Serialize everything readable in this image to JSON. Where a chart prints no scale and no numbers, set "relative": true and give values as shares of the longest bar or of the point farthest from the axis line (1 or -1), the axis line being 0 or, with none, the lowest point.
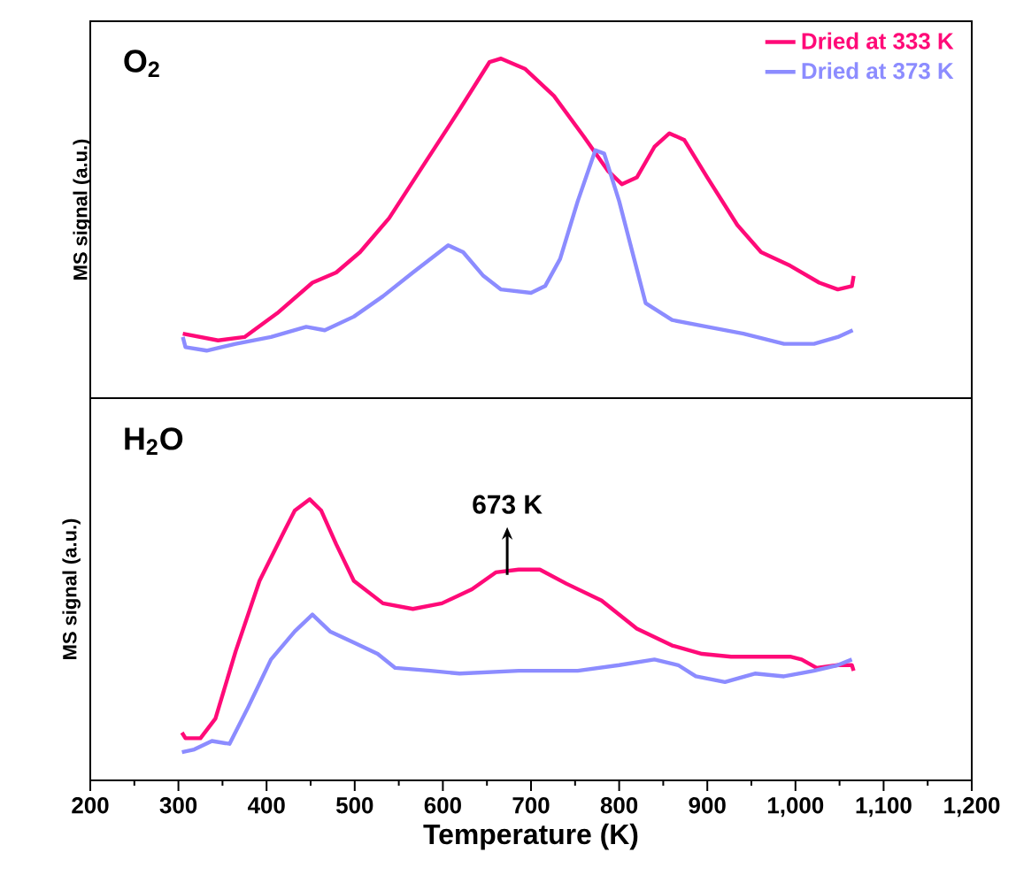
{
  "chart_data": [
    {
      "type": "line",
      "title": "O$_{2}$",
      "ylabel": "MS signal (a.u.)",
      "relative": true,
      "legend": "top right",
      "tick_labels": false,
      "xlim": [
        200,
        1200
      ],
      "series": [
        {
          "name": "Dried at 333 K",
          "color": "#ff0a78",
          "x": [
            305,
            345,
            375,
            412,
            452,
            479,
            506,
            539,
            579,
            619,
            653,
            666,
            693,
            726,
            760,
            787,
            803,
            820,
            840,
            857,
            874,
            900,
            934,
            961,
            994,
            1027,
            1048,
            1064,
            1066
          ],
          "values": [
            0.19,
            0.17,
            0.18,
            0.25,
            0.34,
            0.37,
            0.43,
            0.53,
            0.69,
            0.85,
            0.99,
            1.0,
            0.97,
            0.89,
            0.77,
            0.67,
            0.63,
            0.65,
            0.74,
            0.78,
            0.76,
            0.65,
            0.51,
            0.43,
            0.39,
            0.34,
            0.32,
            0.33,
            0.36
          ]
        },
        {
          "name": "Dried at 373 K",
          "color": "#8c8cff",
          "x": [
            305,
            308,
            332,
            365,
            405,
            445,
            466,
            499,
            532,
            566,
            606,
            623,
            646,
            666,
            700,
            716,
            733,
            753,
            773,
            783,
            800,
            817,
            830,
            860,
            900,
            941,
            987,
            1021,
            1048,
            1065
          ],
          "values": [
            0.18,
            0.15,
            0.14,
            0.16,
            0.18,
            0.21,
            0.2,
            0.24,
            0.3,
            0.37,
            0.45,
            0.43,
            0.36,
            0.32,
            0.31,
            0.33,
            0.41,
            0.58,
            0.73,
            0.72,
            0.58,
            0.41,
            0.28,
            0.23,
            0.21,
            0.19,
            0.16,
            0.16,
            0.18,
            0.2
          ]
        }
      ]
    },
    {
      "type": "line",
      "title": "H$_{2}$O",
      "ylabel": "MS signal (a.u.)",
      "xlabel": "Temperature (K)",
      "relative": true,
      "tick_labels": "x",
      "xlim": [
        200,
        1200
      ],
      "xticks": [
        200,
        300,
        400,
        500,
        600,
        700,
        800,
        900,
        {
          "value": 1000,
          "label": "1,000"
        },
        {
          "value": 1100,
          "label": "1,100"
        },
        {
          "value": 1200,
          "label": "1,200"
        }
      ],
      "annotations": [
        {
          "text": "673 K",
          "x": 673,
          "y": 0.75
        }
      ],
      "series": [
        {
          "color": "#ff0a78",
          "x": [
            304,
            308,
            325,
            342,
            365,
            392,
            419,
            432,
            449,
            462,
            479,
            499,
            532,
            566,
            599,
            633,
            660,
            686,
            710,
            740,
            780,
            820,
            860,
            894,
            927,
            967,
            994,
            1007,
            1024,
            1048,
            1064,
            1066
          ],
          "values": [
            0.17,
            0.15,
            0.15,
            0.22,
            0.46,
            0.71,
            0.88,
            0.96,
            1.0,
            0.96,
            0.84,
            0.71,
            0.63,
            0.61,
            0.63,
            0.68,
            0.74,
            0.75,
            0.75,
            0.7,
            0.64,
            0.54,
            0.48,
            0.45,
            0.44,
            0.44,
            0.44,
            0.43,
            0.4,
            0.41,
            0.41,
            0.39
          ]
        },
        {
          "color": "#8c8cff",
          "x": [
            304,
            318,
            338,
            358,
            379,
            405,
            432,
            452,
            472,
            499,
            526,
            546,
            586,
            619,
            686,
            753,
            800,
            840,
            867,
            887,
            920,
            954,
            987,
            1021,
            1048,
            1064
          ],
          "values": [
            0.1,
            0.11,
            0.14,
            0.13,
            0.26,
            0.43,
            0.53,
            0.59,
            0.53,
            0.49,
            0.45,
            0.4,
            0.39,
            0.38,
            0.39,
            0.39,
            0.41,
            0.43,
            0.41,
            0.37,
            0.35,
            0.38,
            0.37,
            0.39,
            0.41,
            0.43
          ]
        }
      ]
    }
  ]
}
